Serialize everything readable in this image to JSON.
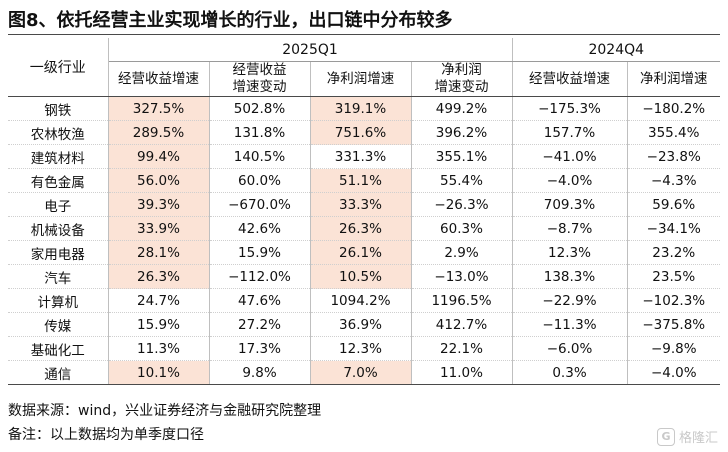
{
  "title": "图8、依托经营主业实现增长的行业，出口链中分布较多",
  "table": {
    "industry_header": "一级行业",
    "group_2025": "2025Q1",
    "group_2024": "2024Q4",
    "col_headers": {
      "rev_growth_2025": "经营收益增速",
      "rev_change_line1": "经营收益",
      "rev_change_line2": "增速变动",
      "profit_growth_2025": "净利润增速",
      "profit_change_line1": "净利润",
      "profit_change_line2": "增速变动",
      "rev_growth_2024": "经营收益增速",
      "profit_growth_2024": "净利润增速"
    },
    "rows": [
      {
        "industry": "钢铁",
        "c1": "327.5%",
        "c2": "502.8%",
        "c3": "319.1%",
        "c4": "499.2%",
        "c5": "−175.3%",
        "c6": "−180.2%"
      },
      {
        "industry": "农林牧渔",
        "c1": "289.5%",
        "c2": "131.8%",
        "c3": "751.6%",
        "c4": "396.2%",
        "c5": "157.7%",
        "c6": "355.4%"
      },
      {
        "industry": "建筑材料",
        "c1": "99.4%",
        "c2": "140.5%",
        "c3": "331.3%",
        "c4": "355.1%",
        "c5": "−41.0%",
        "c6": "−23.8%"
      },
      {
        "industry": "有色金属",
        "c1": "56.0%",
        "c2": "60.0%",
        "c3": "51.1%",
        "c4": "55.4%",
        "c5": "−4.0%",
        "c6": "−4.3%"
      },
      {
        "industry": "电子",
        "c1": "39.3%",
        "c2": "−670.0%",
        "c3": "33.3%",
        "c4": "−26.3%",
        "c5": "709.3%",
        "c6": "59.6%"
      },
      {
        "industry": "机械设备",
        "c1": "33.9%",
        "c2": "42.6%",
        "c3": "26.3%",
        "c4": "60.3%",
        "c5": "−8.7%",
        "c6": "−34.1%"
      },
      {
        "industry": "家用电器",
        "c1": "28.1%",
        "c2": "15.9%",
        "c3": "26.1%",
        "c4": "2.9%",
        "c5": "12.3%",
        "c6": "23.2%"
      },
      {
        "industry": "汽车",
        "c1": "26.3%",
        "c2": "−112.0%",
        "c3": "10.5%",
        "c4": "−13.0%",
        "c5": "138.3%",
        "c6": "23.5%"
      },
      {
        "industry": "计算机",
        "c1": "24.7%",
        "c2": "47.6%",
        "c3": "1094.2%",
        "c4": "1196.5%",
        "c5": "−22.9%",
        "c6": "−102.3%"
      },
      {
        "industry": "传媒",
        "c1": "15.9%",
        "c2": "27.2%",
        "c3": "36.9%",
        "c4": "412.7%",
        "c5": "−11.3%",
        "c6": "−375.8%"
      },
      {
        "industry": "基础化工",
        "c1": "11.3%",
        "c2": "17.3%",
        "c3": "12.3%",
        "c4": "22.1%",
        "c5": "−6.0%",
        "c6": "−9.8%"
      },
      {
        "industry": "通信",
        "c1": "10.1%",
        "c2": "9.8%",
        "c3": "7.0%",
        "c4": "11.0%",
        "c5": "0.3%",
        "c6": "−4.0%"
      }
    ],
    "highlight_color": "#fbe3d6"
  },
  "source_note": "数据来源：wind，兴业证券经济与金融研究院整理",
  "remark_note": "备注：以上数据均为单季度口径",
  "watermark": {
    "icon": "G",
    "text": "格隆汇"
  }
}
